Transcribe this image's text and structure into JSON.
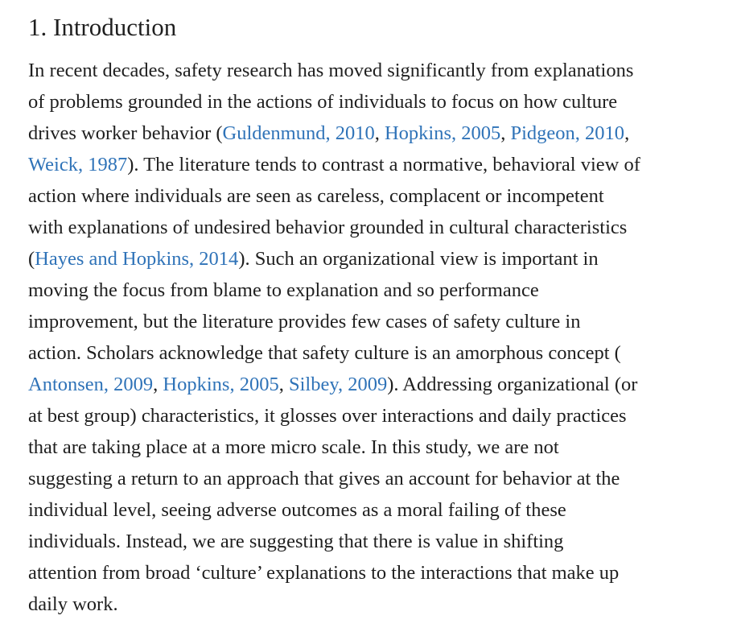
{
  "section": {
    "title": "1. Introduction",
    "link_color": "#2f73b8",
    "lines": [
      [
        {
          "t": "In recent decades, safety research has moved significantly from explanations"
        }
      ],
      [
        {
          "t": "of problems grounded in the actions of individuals to focus on how culture"
        }
      ],
      [
        {
          "t": "drives worker behavior ("
        },
        {
          "t": "Guldenmund, 2010",
          "link": true
        },
        {
          "t": ", "
        },
        {
          "t": "Hopkins, 2005",
          "link": true
        },
        {
          "t": ", "
        },
        {
          "t": "Pidgeon, 2010",
          "link": true
        },
        {
          "t": ","
        }
      ],
      [
        {
          "t": "Weick, 1987",
          "link": true
        },
        {
          "t": "). The literature tends to contrast a normative, behavioral view of"
        }
      ],
      [
        {
          "t": "action where individuals are seen as careless, complacent or incompetent"
        }
      ],
      [
        {
          "t": "with explanations of undesired behavior grounded in cultural characteristics"
        }
      ],
      [
        {
          "t": "("
        },
        {
          "t": "Hayes and Hopkins, 2014",
          "link": true
        },
        {
          "t": "). Such an organizational view is important in"
        }
      ],
      [
        {
          "t": "moving the focus from blame to explanation and so performance"
        }
      ],
      [
        {
          "t": "improvement, but the literature provides few cases of safety culture in"
        }
      ],
      [
        {
          "t": "action. Scholars acknowledge that safety culture is an amorphous concept ("
        }
      ],
      [
        {
          "t": "Antonsen, 2009",
          "link": true
        },
        {
          "t": ", "
        },
        {
          "t": "Hopkins, 2005",
          "link": true
        },
        {
          "t": ", "
        },
        {
          "t": "Silbey, 2009",
          "link": true
        },
        {
          "t": "). Addressing organizational (or"
        }
      ],
      [
        {
          "t": "at best group) characteristics, it glosses over interactions and daily practices"
        }
      ],
      [
        {
          "t": "that are taking place at a more micro scale. In this study, we are not"
        }
      ],
      [
        {
          "t": "suggesting a return to an approach that gives an account for behavior at the"
        }
      ],
      [
        {
          "t": "individual level, seeing adverse outcomes as a moral failing of these"
        }
      ],
      [
        {
          "t": "individuals. Instead, we are suggesting that there is value in shifting"
        }
      ],
      [
        {
          "t": "attention from broad ‘culture’ explanations to the interactions that make up"
        }
      ],
      [
        {
          "t": "daily work."
        }
      ]
    ]
  }
}
